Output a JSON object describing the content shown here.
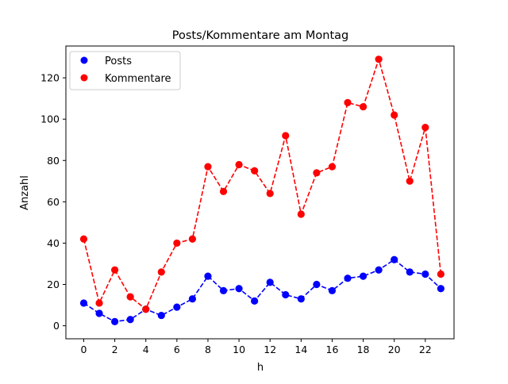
{
  "chart_data": {
    "type": "line",
    "title": "Posts/Kommentare am Montag",
    "xlabel": "h",
    "ylabel": "Anzahl",
    "x": [
      0,
      1,
      2,
      3,
      4,
      5,
      6,
      7,
      8,
      9,
      10,
      11,
      12,
      13,
      14,
      15,
      16,
      17,
      18,
      19,
      20,
      21,
      22,
      23
    ],
    "xticks": [
      0,
      2,
      4,
      6,
      8,
      10,
      12,
      14,
      16,
      18,
      20,
      22
    ],
    "yticks": [
      0,
      20,
      40,
      60,
      80,
      100,
      120
    ],
    "xlim": [
      -1.15,
      23.85
    ],
    "ylim": [
      -6.3,
      135.4
    ],
    "grid": false,
    "legend_position": "upper left",
    "series": [
      {
        "name": "Posts",
        "color": "#0000ff",
        "linestyle": "dashed",
        "marker": "circle",
        "values": [
          11,
          6,
          2,
          3,
          8,
          5,
          9,
          13,
          24,
          17,
          18,
          12,
          21,
          15,
          13,
          20,
          17,
          23,
          24,
          27,
          32,
          26,
          25,
          18
        ]
      },
      {
        "name": "Kommentare",
        "color": "#ff0000",
        "linestyle": "dashed",
        "marker": "circle",
        "values": [
          42,
          11,
          27,
          14,
          8,
          26,
          40,
          42,
          77,
          65,
          78,
          75,
          64,
          92,
          54,
          74,
          77,
          108,
          106,
          129,
          102,
          70,
          96,
          25
        ]
      }
    ]
  }
}
